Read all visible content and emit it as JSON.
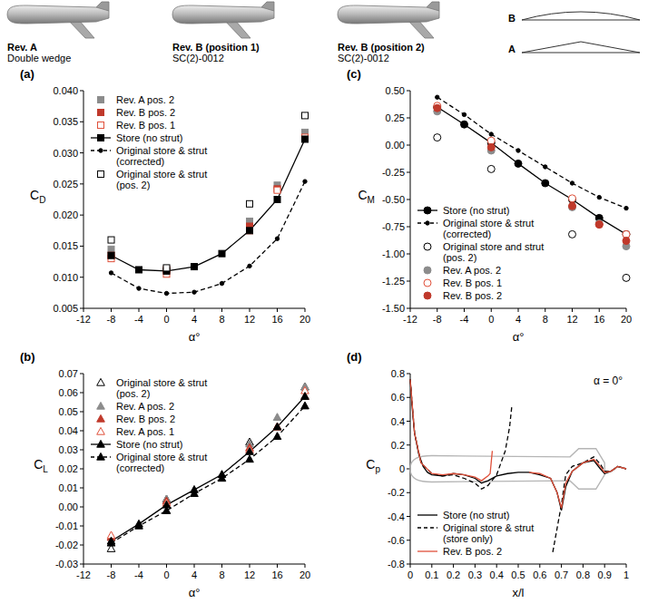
{
  "header": {
    "stores": [
      {
        "label": "Rev. A",
        "section": "Double wedge"
      },
      {
        "label": "Rev. B (position 1)",
        "section": "SC(2)-0012"
      },
      {
        "label": "Rev. B (position 2)",
        "section": "SC(2)-0012"
      }
    ],
    "profiles": [
      "B",
      "A"
    ]
  },
  "chart_data": [
    {
      "type": "line",
      "title": "(a)",
      "x_label": "α°",
      "y_label": "CD",
      "x": [
        -8,
        -4,
        0,
        4,
        8,
        12,
        16,
        20
      ],
      "xlim": [
        -12,
        20
      ],
      "xticks": [
        -12,
        -8,
        -4,
        0,
        4,
        8,
        12,
        16,
        20
      ],
      "ylim": [
        0.005,
        0.04
      ],
      "yticks": [
        0.005,
        {
          "value": 0.01,
          "label": "0.010"
        },
        0.015,
        {
          "value": 0.02,
          "label": "0.020"
        },
        0.025,
        {
          "value": 0.03,
          "label": "0.030"
        },
        0.035,
        {
          "value": 0.04,
          "label": "0.040"
        }
      ],
      "grid": false,
      "legend": "top-left",
      "series": [
        {
          "name": "Rev. A pos. 2",
          "type": "scatter",
          "color": "#8c8c8c",
          "marker": "square",
          "values": [
            0.0145,
            null,
            0.0113,
            null,
            null,
            0.019,
            0.0248,
            0.0333
          ]
        },
        {
          "name": "Rev. B pos. 2",
          "type": "scatter",
          "color": "#c0392b",
          "marker": "square",
          "values": [
            0.0135,
            null,
            0.0112,
            null,
            null,
            0.0182,
            0.0242,
            0.0324
          ]
        },
        {
          "name": "Rev. B pos. 1",
          "type": "scatter",
          "color": "#e0503a",
          "marker": "open-square",
          "values": [
            0.013,
            null,
            0.0105,
            null,
            null,
            0.0175,
            0.024,
            0.0325
          ]
        },
        {
          "name": "Store (no strut)",
          "type": "line",
          "color": "#000000",
          "marker": "square",
          "line_style": "solid",
          "values": [
            0.0135,
            0.0112,
            0.011,
            0.0117,
            0.0138,
            0.0175,
            0.0225,
            0.0322
          ]
        },
        {
          "name": "Original store & strut (corrected)",
          "type": "line",
          "color": "#000000",
          "marker": "dot",
          "line_style": "dashed",
          "values": [
            0.0107,
            0.0082,
            0.0074,
            0.0076,
            0.009,
            0.0118,
            0.0162,
            0.0254
          ]
        },
        {
          "name": "Original store & strut (pos. 2)",
          "type": "scatter",
          "color": "#000000",
          "marker": "open-square",
          "values": [
            0.016,
            null,
            0.0115,
            null,
            null,
            0.0218,
            null,
            0.036
          ]
        }
      ]
    },
    {
      "type": "line",
      "title": "(b)",
      "x_label": "α°",
      "y_label": "CL",
      "x": [
        -8,
        -4,
        0,
        4,
        8,
        12,
        16,
        20
      ],
      "xlim": [
        -12,
        20
      ],
      "xticks": [
        -12,
        -8,
        -4,
        0,
        4,
        8,
        12,
        16,
        20
      ],
      "ylim": [
        -0.03,
        0.07
      ],
      "yticks": [
        -0.03,
        -0.02,
        -0.01,
        {
          "value": 0,
          "label": "0.00"
        },
        0.01,
        0.02,
        0.03,
        0.04,
        0.05,
        0.06,
        0.07
      ],
      "grid": false,
      "legend": "top-left",
      "series": [
        {
          "name": "Original store & strut (pos. 2)",
          "type": "scatter",
          "color": "#000000",
          "marker": "open-triangle",
          "values": [
            -0.022,
            null,
            0.004,
            null,
            null,
            0.034,
            null,
            0.063
          ]
        },
        {
          "name": "Rev. A pos. 2",
          "type": "scatter",
          "color": "#8c8c8c",
          "marker": "triangle",
          "values": [
            -0.016,
            null,
            0.004,
            null,
            null,
            0.033,
            0.047,
            0.063
          ]
        },
        {
          "name": "Rev. B pos. 2",
          "type": "scatter",
          "color": "#c0392b",
          "marker": "triangle",
          "values": [
            -0.016,
            null,
            0.003,
            null,
            null,
            0.031,
            0.042,
            0.058
          ]
        },
        {
          "name": "Rev. A pos. 1",
          "type": "scatter",
          "color": "#e0503a",
          "marker": "open-triangle",
          "values": [
            -0.015,
            null,
            0.002,
            null,
            null,
            0.03,
            0.042,
            0.061
          ]
        },
        {
          "name": "Store (no strut)",
          "type": "line",
          "color": "#000000",
          "marker": "triangle",
          "line_style": "solid",
          "values": [
            -0.018,
            -0.009,
            0.001,
            0.009,
            0.017,
            0.029,
            0.042,
            0.058
          ]
        },
        {
          "name": "Original store & strut (corrected)",
          "type": "line",
          "color": "#000000",
          "marker": "triangle",
          "line_style": "dashed",
          "values": [
            -0.019,
            -0.01,
            -0.002,
            0.007,
            0.015,
            0.025,
            0.037,
            0.053
          ]
        }
      ]
    },
    {
      "type": "line",
      "title": "(c)",
      "x_label": "α°",
      "y_label": "CM",
      "x": [
        -8,
        -4,
        0,
        4,
        8,
        12,
        16,
        20
      ],
      "xlim": [
        -12,
        20
      ],
      "xticks": [
        -12,
        -8,
        -4,
        0,
        4,
        8,
        12,
        16,
        20
      ],
      "ylim": [
        -1.5,
        0.5
      ],
      "yticks": [
        {
          "value": -1.5,
          "label": "-1.50"
        },
        -1.25,
        {
          "value": -1,
          "label": "-1.00"
        },
        -0.75,
        {
          "value": -0.5,
          "label": "-0.50"
        },
        -0.25,
        {
          "value": 0,
          "label": "0.00"
        },
        0.25,
        {
          "value": 0.5,
          "label": "0.50"
        }
      ],
      "grid": false,
      "legend": "bottom-left",
      "series": [
        {
          "name": "Store (no strut)",
          "type": "line",
          "color": "#000000",
          "marker": "circle",
          "line_style": "solid",
          "values": [
            0.35,
            0.19,
            0.02,
            -0.17,
            -0.35,
            -0.5,
            -0.67,
            -0.82
          ]
        },
        {
          "name": "Original store & strut (corrected)",
          "type": "line",
          "color": "#000000",
          "marker": "dot",
          "line_style": "dashed",
          "values": [
            0.44,
            0.28,
            0.1,
            -0.05,
            -0.2,
            -0.35,
            -0.48,
            -0.58
          ]
        },
        {
          "name": "Original store and strut (pos. 2)",
          "type": "scatter",
          "color": "#000000",
          "marker": "open-circle",
          "values": [
            0.07,
            null,
            -0.22,
            null,
            null,
            -0.82,
            null,
            -1.22
          ]
        },
        {
          "name": "Rev. A pos. 2",
          "type": "scatter",
          "color": "#8c8c8c",
          "marker": "circle",
          "values": [
            0.31,
            null,
            -0.05,
            null,
            null,
            -0.57,
            -0.72,
            -0.93
          ]
        },
        {
          "name": "Rev. B pos. 1",
          "type": "scatter",
          "color": "#e0503a",
          "marker": "open-circle",
          "values": [
            0.36,
            null,
            0.04,
            null,
            null,
            -0.49,
            -0.73,
            -0.82
          ]
        },
        {
          "name": "Rev. B pos. 2",
          "type": "scatter",
          "color": "#c0392b",
          "marker": "circle",
          "values": [
            0.34,
            null,
            -0.02,
            null,
            null,
            -0.56,
            -0.73,
            -0.88
          ]
        }
      ]
    },
    {
      "type": "line",
      "title": "(d)",
      "x_label": "x/l",
      "y_label": "Cp",
      "annotation": "α = 0°",
      "xlim": [
        0,
        1
      ],
      "xticks": [
        0,
        0.1,
        0.2,
        0.3,
        0.4,
        0.5,
        0.6,
        0.7,
        0.8,
        0.9,
        1
      ],
      "ylim": [
        -0.8,
        0.8
      ],
      "yticks": [
        -0.8,
        -0.6,
        -0.4,
        -0.2,
        0,
        0.2,
        0.4,
        0.6,
        0.8
      ],
      "grid": false,
      "legend": "bottom-left",
      "series": [
        {
          "name": "Store (no strut)",
          "type": "line",
          "color": "#000000",
          "marker": "none",
          "line_style": "solid",
          "x": [
            0,
            0.01,
            0.02,
            0.04,
            0.06,
            0.08,
            0.1,
            0.15,
            0.2,
            0.25,
            0.3,
            0.33,
            0.36,
            0.4,
            0.45,
            0.5,
            0.55,
            0.6,
            0.65,
            0.68,
            0.7,
            0.72,
            0.75,
            0.8,
            0.85,
            0.88,
            0.9,
            0.93,
            0.96,
            1
          ],
          "values": [
            0.75,
            0.5,
            0.3,
            0.12,
            0.02,
            -0.03,
            -0.05,
            -0.06,
            -0.04,
            -0.05,
            -0.08,
            -0.12,
            -0.1,
            -0.06,
            -0.04,
            -0.03,
            -0.03,
            -0.05,
            -0.08,
            -0.2,
            -0.35,
            -0.15,
            -0.02,
            0.05,
            0.07,
            0,
            -0.04,
            -0.02,
            0.02,
            0
          ]
        },
        {
          "name": "Original store & strut (store only)",
          "type": "line",
          "color": "#000000",
          "marker": "none",
          "line_style": "dashed",
          "x": [
            0,
            0.02,
            0.05,
            0.1,
            0.15,
            0.2,
            0.25,
            0.3,
            0.33,
            0.36,
            0.4,
            0.42,
            0.44,
            0.46,
            0.47,
            null,
            0.66,
            0.67,
            0.7,
            0.72,
            0.75,
            0.8,
            0.85,
            0.88,
            0.9,
            0.93,
            0.96,
            1
          ],
          "values": [
            0.75,
            0.3,
            0.05,
            -0.04,
            -0.06,
            -0.05,
            -0.08,
            -0.12,
            -0.17,
            -0.14,
            -0.05,
            0.05,
            0.15,
            0.35,
            0.52,
            null,
            -0.7,
            -0.6,
            -0.3,
            -0.05,
            0.02,
            0.05,
            0.1,
            0.04,
            -0.02,
            -0.02,
            0.02,
            0
          ]
        },
        {
          "name": "Rev. B pos. 2",
          "type": "line",
          "color": "#e0503a",
          "marker": "none",
          "line_style": "solid",
          "x": [
            0,
            0.02,
            0.05,
            0.1,
            0.15,
            0.2,
            0.25,
            0.3,
            0.33,
            0.36,
            0.37,
            0.38,
            null,
            0.55,
            0.6,
            0.65,
            0.68,
            0.7,
            0.72,
            0.75,
            0.8,
            0.85,
            0.88,
            0.9,
            0.93,
            0.96,
            1
          ],
          "values": [
            0.75,
            0.3,
            0.05,
            -0.04,
            -0.05,
            -0.04,
            -0.05,
            -0.07,
            -0.1,
            -0.06,
            -0.04,
            0.15,
            null,
            -0.03,
            -0.04,
            -0.08,
            -0.2,
            -0.33,
            -0.12,
            -0.02,
            0.05,
            0.08,
            0.02,
            -0.03,
            -0.02,
            0.02,
            0
          ]
        }
      ]
    }
  ]
}
